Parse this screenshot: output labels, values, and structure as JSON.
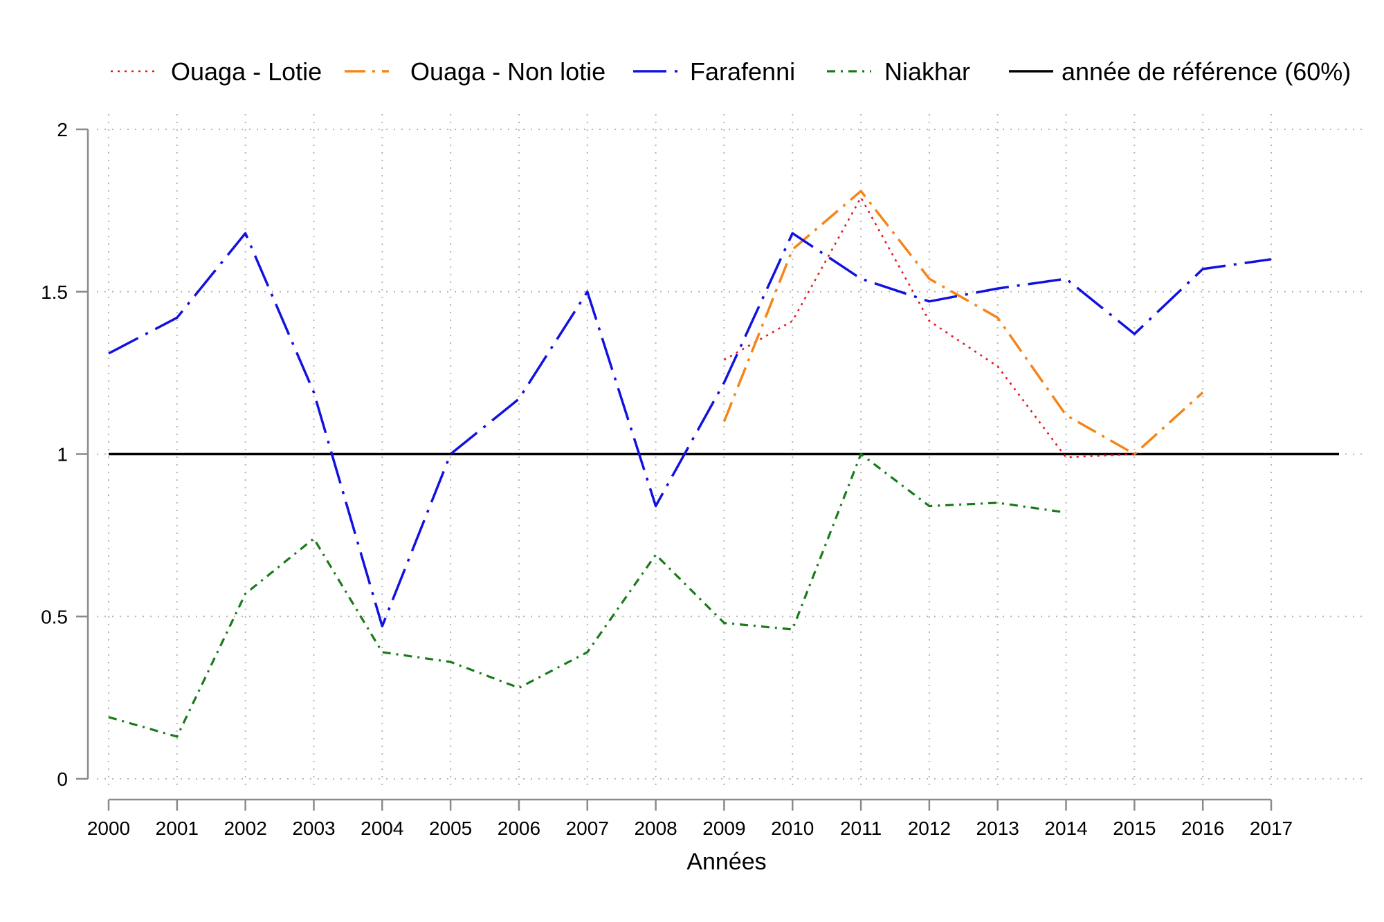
{
  "chart_data": {
    "type": "line",
    "title": "",
    "xlabel": "Années",
    "ylabel": "",
    "x": [
      2000,
      2001,
      2002,
      2003,
      2004,
      2005,
      2006,
      2007,
      2008,
      2009,
      2010,
      2011,
      2012,
      2013,
      2014,
      2015,
      2016,
      2017
    ],
    "xlim": [
      2000,
      2017
    ],
    "ylim": [
      0,
      2
    ],
    "yticks": [
      0,
      0.5,
      1,
      1.5,
      2
    ],
    "ytick_labels": [
      "0",
      "0.5",
      "1",
      "1.5",
      "2"
    ],
    "grid": true,
    "legend_position": "top",
    "series": [
      {
        "name": "Ouaga - Lotie",
        "color": "#e8141e",
        "line_style": "dotted",
        "x": [
          2009,
          2010,
          2011,
          2012,
          2013,
          2014,
          2015
        ],
        "values": [
          1.29,
          1.41,
          1.79,
          1.41,
          1.27,
          0.99,
          1.0
        ]
      },
      {
        "name": "Ouaga - Non lotie",
        "color": "#f58518",
        "line_style": "dash-dot",
        "x": [
          2009,
          2010,
          2011,
          2012,
          2013,
          2014,
          2015,
          2016
        ],
        "values": [
          1.1,
          1.63,
          1.81,
          1.54,
          1.42,
          1.12,
          1.0,
          1.19
        ]
      },
      {
        "name": "Farafenni",
        "color": "#1111e0",
        "line_style": "long-dash-dot",
        "x": [
          2000,
          2001,
          2002,
          2003,
          2004,
          2005,
          2006,
          2007,
          2008,
          2009,
          2010,
          2011,
          2012,
          2013,
          2014,
          2015,
          2016,
          2017
        ],
        "values": [
          1.31,
          1.42,
          1.68,
          1.19,
          0.47,
          1.0,
          1.17,
          1.5,
          0.84,
          1.22,
          1.68,
          1.54,
          1.47,
          1.51,
          1.54,
          1.37,
          1.57,
          1.6
        ]
      },
      {
        "name": "Niakhar",
        "color": "#1a7a1a",
        "line_style": "dot-dash",
        "x": [
          2000,
          2001,
          2002,
          2003,
          2004,
          2005,
          2006,
          2007,
          2008,
          2009,
          2010,
          2011,
          2012,
          2013,
          2014
        ],
        "values": [
          0.19,
          0.13,
          0.57,
          0.74,
          0.39,
          0.36,
          0.28,
          0.39,
          0.69,
          0.48,
          0.46,
          1.0,
          0.84,
          0.85,
          0.82
        ]
      },
      {
        "name": "année de référence (60%)",
        "color": "#000000",
        "line_style": "solid",
        "x": [
          2000,
          2017
        ],
        "values": [
          1.0,
          1.0
        ]
      }
    ]
  }
}
